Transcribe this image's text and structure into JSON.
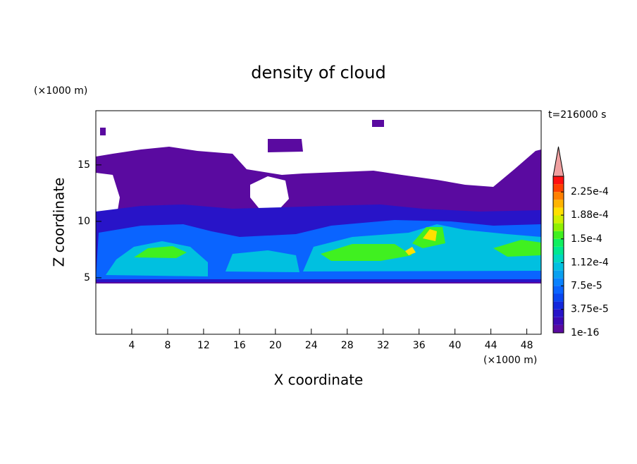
{
  "chart_data": {
    "type": "contour",
    "title": "density of cloud",
    "x_label": "X coordinate",
    "y_label": "Z coordinate",
    "x_unit": "(×1000 m)",
    "y_unit": "(×1000 m)",
    "time_label": "t=216000 s",
    "xlim": [
      0,
      49.6
    ],
    "ylim": [
      0,
      19.8
    ],
    "xticks": [
      4,
      8,
      12,
      16,
      20,
      24,
      28,
      32,
      36,
      40,
      44,
      48
    ],
    "yticks": [
      5,
      10,
      15
    ],
    "colorbar": {
      "lim": [
        1e-16,
        0.00025
      ],
      "ticks": [
        {
          "value": 1e-16,
          "label": "1e-16"
        },
        {
          "value": 3.75e-05,
          "label": "3.75e-5"
        },
        {
          "value": 7.5e-05,
          "label": "7.5e-5"
        },
        {
          "value": 0.000112,
          "label": "1.12e-4"
        },
        {
          "value": 0.00015,
          "label": "1.5e-4"
        },
        {
          "value": 0.000188,
          "label": "1.88e-4"
        },
        {
          "value": 0.000225,
          "label": "2.25e-4"
        }
      ],
      "colors": [
        "#5a0aa0",
        "#3c0ab4",
        "#2814c8",
        "#1428dc",
        "#0a46f0",
        "#0a64ff",
        "#0a82ff",
        "#0aa0f0",
        "#00c0e0",
        "#00d8c0",
        "#00e890",
        "#10f060",
        "#40f020",
        "#90f000",
        "#d0f000",
        "#ffe000",
        "#ffb400",
        "#ff8000",
        "#ff4000",
        "#ff1010"
      ],
      "extend_color": "#f0a0a0"
    }
  }
}
